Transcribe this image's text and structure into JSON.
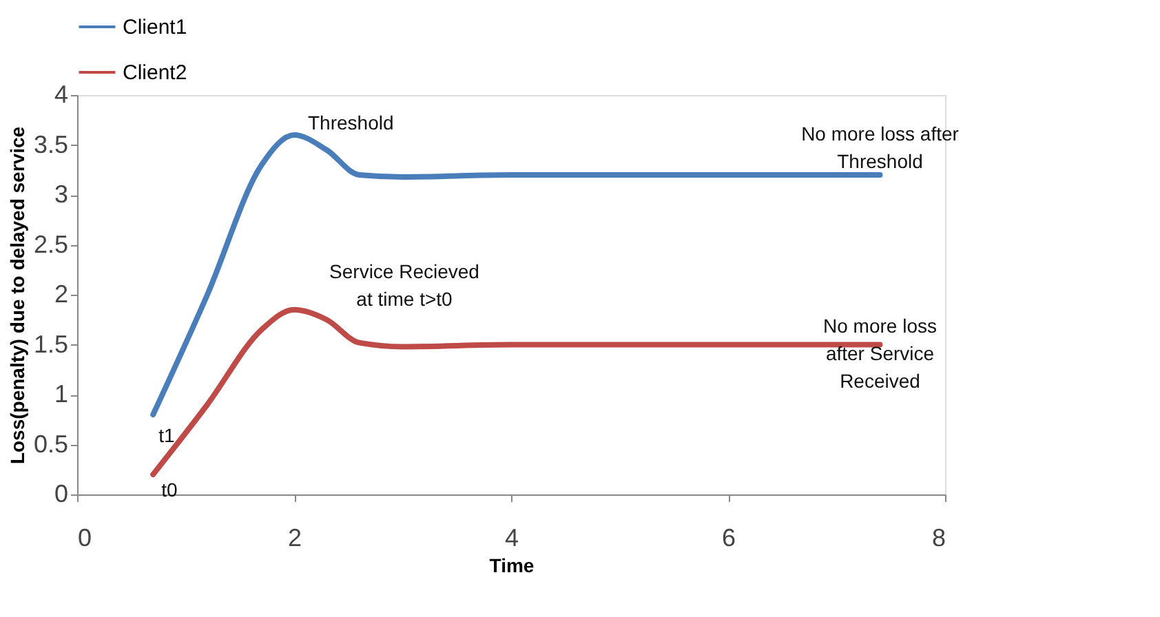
{
  "chart_data": {
    "type": "line",
    "xlabel": "Time",
    "ylabel": "Loss(penalty) due to delayed service",
    "series": [
      {
        "name": "Client1",
        "color": "#4a7ebb",
        "x": [
          0.7,
          1.2,
          1.7,
          2.0,
          2.3,
          2.6,
          3.0,
          4.0,
          5.0,
          6.0,
          7.4
        ],
        "values": [
          0.8,
          2.0,
          3.3,
          3.6,
          3.45,
          3.2,
          3.18,
          3.2,
          3.2,
          3.2,
          3.2
        ]
      },
      {
        "name": "Client2",
        "color": "#be4b48",
        "x": [
          0.7,
          1.2,
          1.7,
          2.0,
          2.3,
          2.6,
          3.0,
          4.0,
          5.0,
          6.0,
          7.4
        ],
        "values": [
          0.2,
          0.9,
          1.65,
          1.85,
          1.75,
          1.52,
          1.48,
          1.5,
          1.5,
          1.5,
          1.5
        ]
      }
    ],
    "xlim": [
      0,
      8
    ],
    "xticks": [
      0,
      2,
      4,
      6,
      8
    ],
    "ylim": [
      0,
      4
    ],
    "yticks": [
      0,
      0.5,
      1,
      1.5,
      2,
      2.5,
      3,
      3.5,
      4
    ],
    "annotations": [
      {
        "text": "Threshold",
        "x": 2.0,
        "y": 3.6
      },
      {
        "text": "Service Recieved\nat time t>t0",
        "x": 2.0,
        "y": 1.85
      },
      {
        "text": "No more loss after\nThreshold",
        "x": 7.4,
        "y": 3.2
      },
      {
        "text": "No more loss\nafter Service\nReceived",
        "x": 7.4,
        "y": 1.5
      },
      {
        "text": "t1",
        "x": 0.7,
        "y": 0.8
      },
      {
        "text": "t0",
        "x": 0.7,
        "y": 0.2
      }
    ],
    "grid": false,
    "legend": "top",
    "marker": "none",
    "line_style": "solid"
  }
}
